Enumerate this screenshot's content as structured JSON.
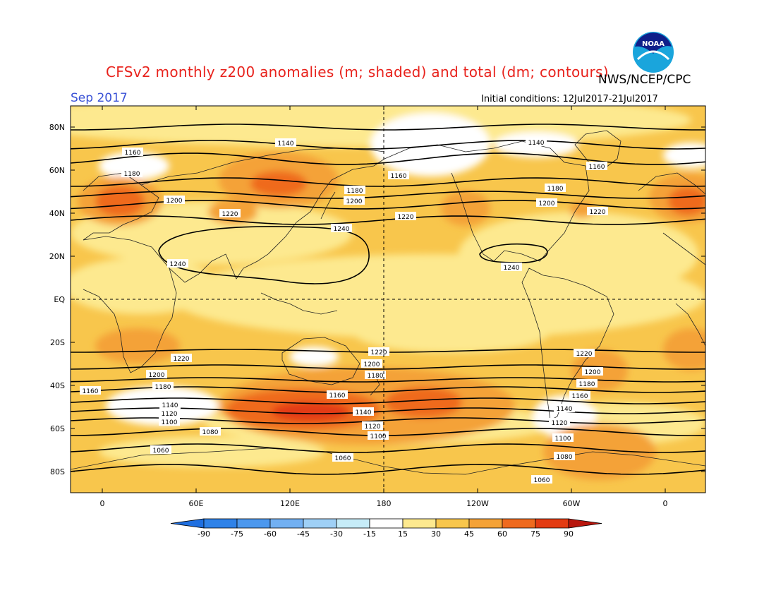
{
  "title": "CFSv2 monthly z200 anomalies (m; shaded) and total (dm; contours)",
  "agency": "NWS/NCEP/CPC",
  "logo_text": "NOAA",
  "month_label": "Sep 2017",
  "initial_conditions": "Initial conditions: 12Jul2017-21Jul2017",
  "lat_labels": [
    "80N",
    "60N",
    "40N",
    "20N",
    "EQ",
    "20S",
    "40S",
    "60S",
    "80S"
  ],
  "lon_labels": [
    "0",
    "60E",
    "120E",
    "180",
    "120W",
    "60W",
    "0"
  ],
  "colorbar": {
    "labels": [
      "-90",
      "-75",
      "-60",
      "-45",
      "-30",
      "-15",
      "15",
      "30",
      "45",
      "60",
      "75",
      "90"
    ],
    "colors": [
      "#1f6fe0",
      "#2f82e8",
      "#4c98ee",
      "#72b0f2",
      "#9fd0f6",
      "#c6ecf8",
      "#ffffff",
      "#fde98f",
      "#f8c64c",
      "#f4a237",
      "#ef6a1e",
      "#e33b12",
      "#b8160d"
    ]
  },
  "contour_labels": [
    "1140",
    "1160",
    "1180",
    "1200",
    "1220",
    "1240",
    "1220",
    "1200",
    "1180",
    "1160",
    "1140",
    "1120",
    "1100",
    "1080",
    "1060"
  ],
  "chart_data": {
    "type": "heatmap",
    "variable": "z200",
    "shading_units": "m",
    "contour_units": "dm",
    "shading_levels": [
      -90,
      -75,
      -60,
      -45,
      -30,
      -15,
      15,
      30,
      45,
      60,
      75,
      90
    ],
    "contour_levels": [
      1060,
      1080,
      1100,
      1120,
      1140,
      1160,
      1180,
      1200,
      1220,
      1240
    ],
    "lon_range": [
      -15,
      375
    ],
    "lat_range": [
      -90,
      90
    ]
  }
}
